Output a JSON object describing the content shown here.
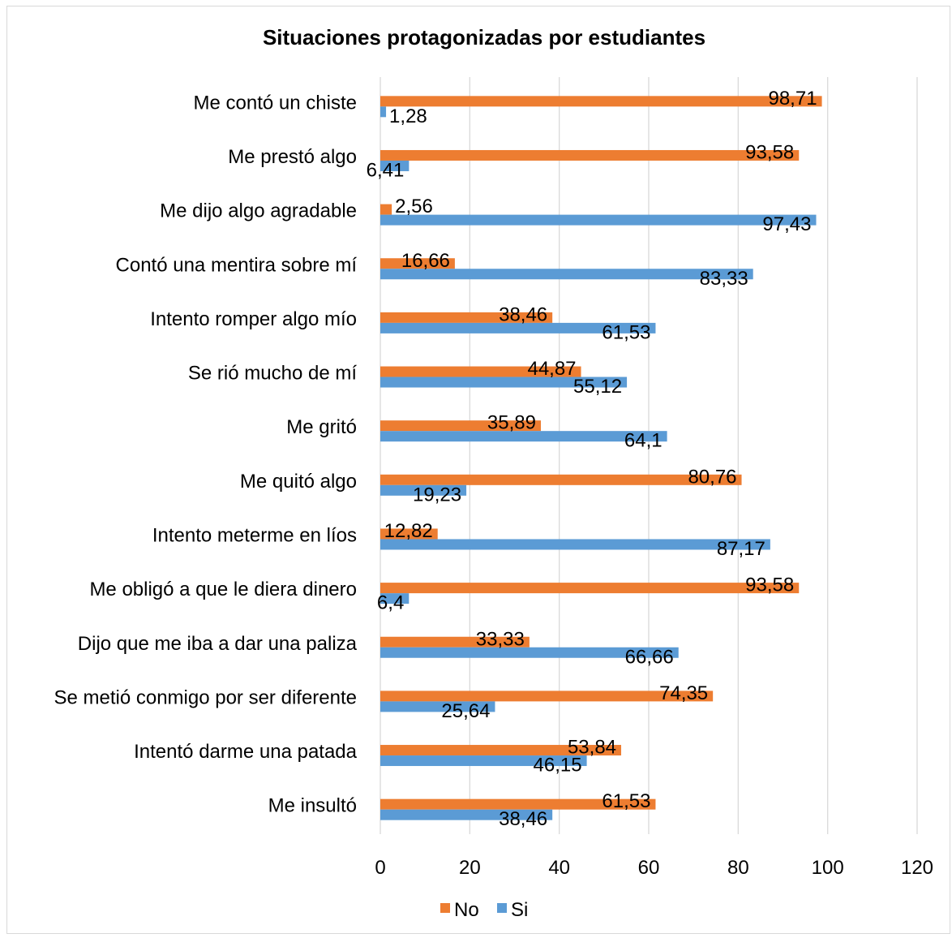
{
  "chart_data": {
    "type": "bar",
    "orientation": "horizontal",
    "title": "Situaciones protagonizadas por estudiantes",
    "xlabel": "",
    "ylabel": "",
    "xlim": [
      0,
      120
    ],
    "x_ticks": [
      0,
      20,
      40,
      60,
      80,
      100,
      120
    ],
    "grid": true,
    "legend_position": "bottom",
    "categories": [
      "Me contó un chiste",
      "Me prestó algo",
      "Me dijo algo agradable",
      "Contó una mentira sobre mí",
      "Intento romper algo mío",
      "Se rió mucho de mí",
      "Me gritó",
      "Me quitó algo",
      "Intento meterme en líos",
      "Me obligó a que le diera dinero",
      "Dijo que me iba a dar una paliza",
      "Se metió conmigo por ser diferente",
      "Intentó darme una patada",
      "Me insultó"
    ],
    "series": [
      {
        "name": "No",
        "color": "#ed7d31",
        "values": [
          98.71,
          93.58,
          2.56,
          16.66,
          38.46,
          44.87,
          35.89,
          80.76,
          12.82,
          93.58,
          33.33,
          74.35,
          53.84,
          61.53
        ],
        "labels": [
          "98,71",
          "93,58",
          "2,56",
          "16,66",
          "38,46",
          "44,87",
          "35,89",
          "80,76",
          "12,82",
          "93,58",
          "33,33",
          "74,35",
          "53,84",
          "61,53"
        ]
      },
      {
        "name": "Si",
        "color": "#5b9bd5",
        "values": [
          1.28,
          6.41,
          97.43,
          83.33,
          61.53,
          55.12,
          64.1,
          19.23,
          87.17,
          6.4,
          66.66,
          25.64,
          46.15,
          38.46
        ],
        "labels": [
          "1,28",
          "6,41",
          "97,43",
          "83,33",
          "61,53",
          "55,12",
          "64,1",
          "19,23",
          "87,17",
          "6,4",
          "66,66",
          "25,64",
          "46,15",
          "38,46"
        ]
      }
    ]
  },
  "colors": {
    "gridline": "#d9d9d9",
    "border": "#d9d9d9"
  }
}
